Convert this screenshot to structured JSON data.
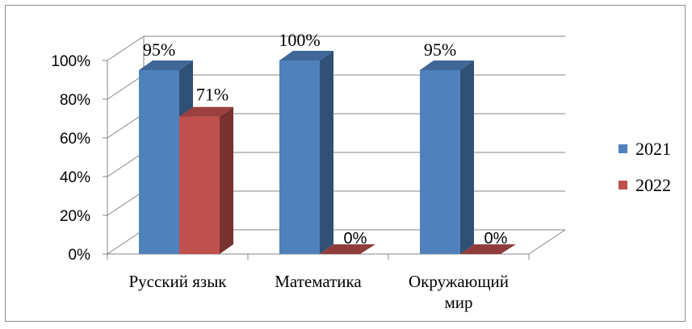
{
  "chart_data": {
    "type": "bar",
    "categories": [
      "Русский язык",
      "Математика",
      "Окружающий мир"
    ],
    "category_lines": [
      [
        "Русский язык"
      ],
      [
        "Математика"
      ],
      [
        "Окружающий",
        "мир"
      ]
    ],
    "series": [
      {
        "name": "2021",
        "values": [
          95,
          100,
          95
        ],
        "labels": [
          "95%",
          "100%",
          "95%"
        ],
        "color": "#4F81BD"
      },
      {
        "name": "2022",
        "values": [
          71,
          0,
          0
        ],
        "labels": [
          "71%",
          "0%",
          "0%"
        ],
        "color": "#C0504D"
      }
    ],
    "yticks": [
      "0%",
      "20%",
      "40%",
      "60%",
      "80%",
      "100%"
    ],
    "ylim": [
      0,
      100
    ],
    "grid": true,
    "legend_position": "right",
    "three_d": true
  }
}
